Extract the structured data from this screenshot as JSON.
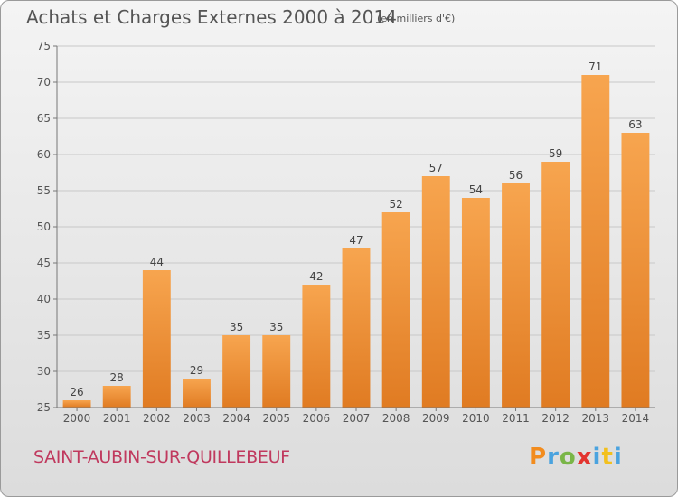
{
  "title": "Achats et Charges Externes 2000 à 2014",
  "unit": "(en milliers d'€)",
  "commune": "SAINT-AUBIN-SUR-QUILLEBEUF",
  "logo": {
    "text": "Proxiti"
  },
  "colors": {
    "bar_top": "#f7a54f",
    "bar_bottom": "#e07b22",
    "grid": "#c8c8c8",
    "commune": "#c0395e"
  },
  "chart_data": {
    "type": "bar",
    "categories": [
      "2000",
      "2001",
      "2002",
      "2003",
      "2004",
      "2005",
      "2006",
      "2007",
      "2008",
      "2009",
      "2010",
      "2011",
      "2012",
      "2013",
      "2014"
    ],
    "values": [
      26,
      28,
      44,
      29,
      35,
      35,
      42,
      47,
      52,
      57,
      54,
      56,
      59,
      71,
      63
    ],
    "ylim": [
      25,
      75
    ],
    "yticks": [
      25,
      30,
      35,
      40,
      45,
      50,
      55,
      60,
      65,
      70,
      75
    ],
    "grid": true,
    "data_labels": true
  }
}
